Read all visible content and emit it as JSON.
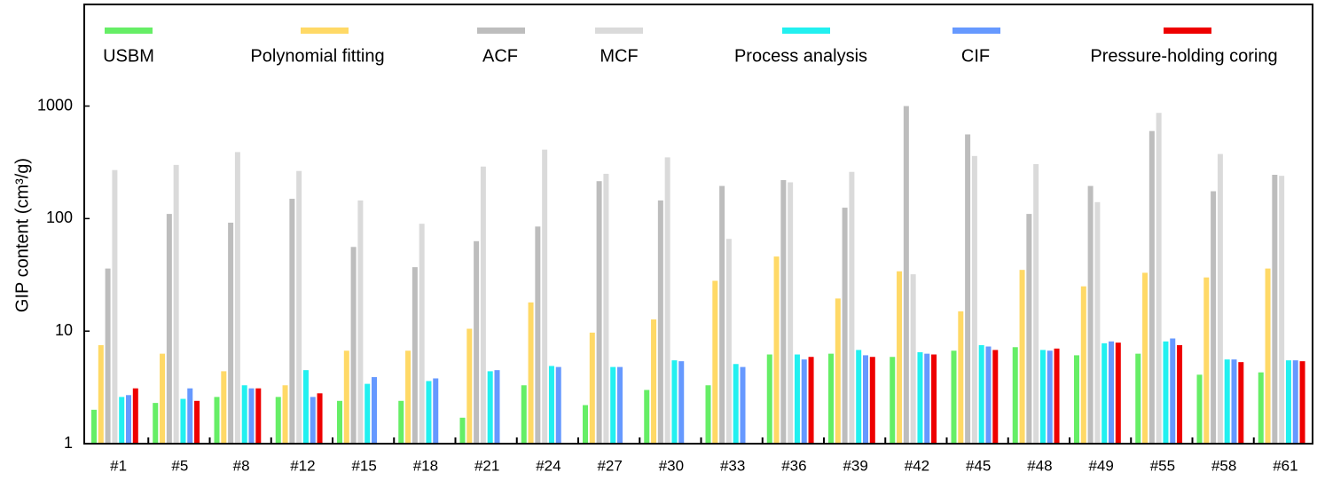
{
  "chart_data": {
    "type": "bar",
    "ylabel": "GIP content (cm³/g)",
    "categories": [
      "#1",
      "#5",
      "#8",
      "#12",
      "#15",
      "#18",
      "#21",
      "#24",
      "#27",
      "#30",
      "#33",
      "#36",
      "#39",
      "#42",
      "#45",
      "#48",
      "#49",
      "#55",
      "#58",
      "#61"
    ],
    "series": [
      {
        "name": "USBM",
        "color": "#66ee66",
        "values": [
          2.0,
          2.3,
          2.6,
          2.6,
          2.4,
          2.4,
          1.7,
          3.3,
          2.2,
          3.0,
          3.3,
          6.2,
          6.3,
          5.9,
          6.7,
          7.2,
          6.1,
          6.3,
          4.1,
          4.3
        ]
      },
      {
        "name": "Polynomial fitting",
        "color": "#ffd966",
        "values": [
          7.5,
          6.3,
          4.4,
          3.3,
          6.7,
          6.7,
          10.5,
          18,
          9.7,
          12.7,
          28,
          46,
          19.5,
          34,
          15,
          35,
          25,
          33,
          30,
          36
        ]
      },
      {
        "name": "ACF",
        "color": "#bdbdbd",
        "values": [
          36,
          110,
          92,
          150,
          56,
          37,
          63,
          85,
          215,
          145,
          195,
          220,
          125,
          1000,
          560,
          110,
          195,
          600,
          175,
          245
        ]
      },
      {
        "name": "MCF",
        "color": "#dadada",
        "values": [
          270,
          300,
          390,
          265,
          145,
          90,
          290,
          410,
          250,
          350,
          66,
          210,
          260,
          32,
          360,
          305,
          140,
          870,
          375,
          240
        ]
      },
      {
        "name": "Process analysis",
        "color": "#22f0f0",
        "values": [
          2.6,
          2.5,
          3.3,
          4.5,
          3.4,
          3.6,
          4.4,
          4.9,
          4.8,
          5.5,
          5.1,
          6.2,
          6.8,
          6.5,
          7.5,
          6.8,
          7.8,
          8.1,
          5.6,
          5.5
        ]
      },
      {
        "name": "CIF",
        "color": "#6699ff",
        "values": [
          2.7,
          3.1,
          3.1,
          2.6,
          3.9,
          3.8,
          4.5,
          4.8,
          4.8,
          5.4,
          4.8,
          5.6,
          6.1,
          6.3,
          7.3,
          6.7,
          8.1,
          8.6,
          5.6,
          5.5
        ]
      },
      {
        "name": "Pressure-holding coring",
        "color": "#ee0000",
        "values": [
          3.1,
          2.4,
          3.1,
          2.8,
          null,
          null,
          null,
          null,
          null,
          null,
          null,
          5.9,
          5.9,
          6.2,
          6.8,
          7.0,
          7.9,
          7.5,
          5.3,
          5.4
        ]
      }
    ],
    "ylim": [
      1,
      8000
    ],
    "yticks": [
      1,
      10,
      100,
      1000
    ],
    "ylog": true,
    "legend": "top"
  }
}
